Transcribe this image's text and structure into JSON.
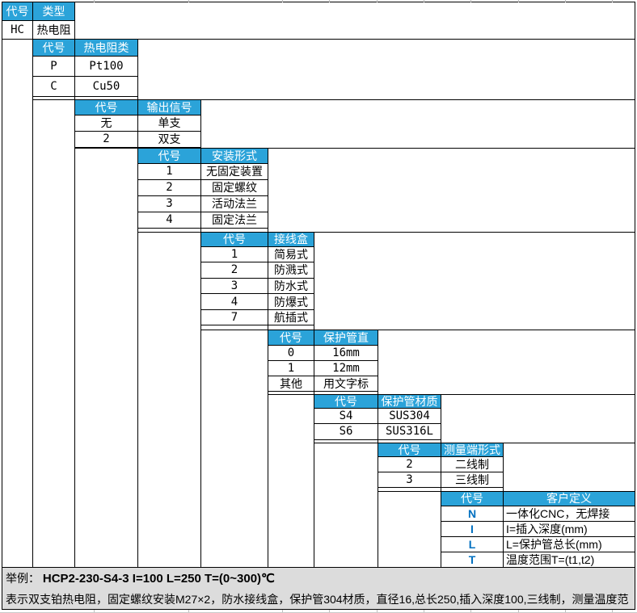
{
  "colors": {
    "header_bg": "#2ba3d9",
    "header_text": "#ffffff",
    "code_accent": "#0070c0",
    "example_bg": "#dcdcdc",
    "border": "#000000"
  },
  "table": {
    "blocks": [
      {
        "code_header": "代号",
        "value_header": "类型",
        "rows": [
          {
            "code": "HC",
            "label": "热电阻"
          }
        ]
      },
      {
        "code_header": "代号",
        "value_header": "热电阻类",
        "rows": [
          {
            "code": "P",
            "label": "Pt100"
          },
          {
            "code": "C",
            "label": "Cu50"
          }
        ]
      },
      {
        "code_header": "代号",
        "value_header": "输出信号",
        "rows": [
          {
            "code": "无",
            "label": "单支"
          },
          {
            "code": "2",
            "label": "双支"
          }
        ]
      },
      {
        "code_header": "代号",
        "value_header": "安装形式",
        "rows": [
          {
            "code": "1",
            "label": "无固定装置"
          },
          {
            "code": "2",
            "label": "固定螺纹"
          },
          {
            "code": "3",
            "label": "活动法兰"
          },
          {
            "code": "4",
            "label": "固定法兰"
          }
        ]
      },
      {
        "code_header": "代号",
        "value_header": "接线盒",
        "rows": [
          {
            "code": "1",
            "label": "简易式"
          },
          {
            "code": "2",
            "label": "防溅式"
          },
          {
            "code": "3",
            "label": "防水式"
          },
          {
            "code": "4",
            "label": "防爆式"
          },
          {
            "code": "7",
            "label": "航插式"
          }
        ]
      },
      {
        "code_header": "代号",
        "value_header": "保护管直",
        "rows": [
          {
            "code": "0",
            "label": "16mm"
          },
          {
            "code": "1",
            "label": "12mm"
          },
          {
            "code": "其他",
            "label": "用文字标"
          }
        ]
      },
      {
        "code_header": "代号",
        "value_header": "保护管材质",
        "rows": [
          {
            "code": "S4",
            "label": "SUS304"
          },
          {
            "code": "S6",
            "label": "SUS316L"
          }
        ]
      },
      {
        "code_header": "代号",
        "value_header": "测量端形式",
        "rows": [
          {
            "code": "2",
            "label": "二线制"
          },
          {
            "code": "3",
            "label": "三线制"
          }
        ]
      },
      {
        "code_header": "代号",
        "value_header": "客户定义",
        "rows": [
          {
            "code": "N",
            "label": "一体化CNC，无焊接"
          },
          {
            "code": "I",
            "label": "I=插入深度(mm)"
          },
          {
            "code": "L",
            "label": "L=保护管总长(mm)"
          },
          {
            "code": "T",
            "label": "温度范围T=(t1,t2)"
          }
        ]
      }
    ]
  },
  "example": {
    "prefix": "举例：  ",
    "code": "HCP2-230-S4-3 I=100 L=250 T=(0~300)℃",
    "description": "表示双支铂热电阻，固定螺纹安装M27×2，防水接线盒，保护管304材质，直径16,总长250,插入深度100,三线制，测量温度范"
  }
}
